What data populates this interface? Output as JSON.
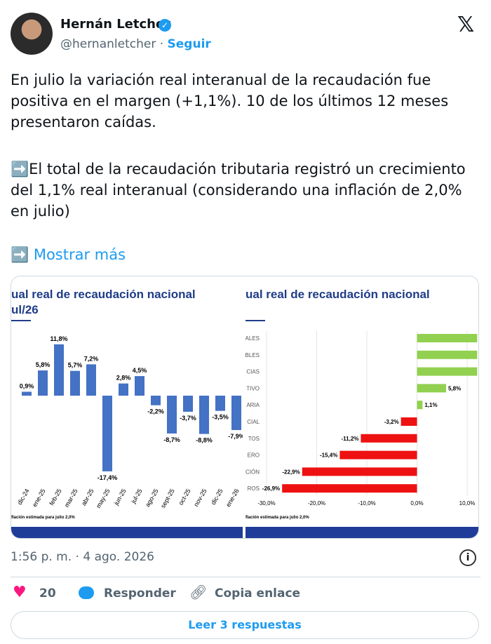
{
  "tweet": {
    "author": {
      "name": "Hernán Letcher",
      "handle": "@hernanletcher",
      "separator": "·",
      "follow": "Seguir"
    },
    "paragraphs": [
      "En julio la variación real interanual de la recaudación fue positiva en el margen (+1,1%). 10 de los últimos 12 meses presentaron caídas.",
      "➡️El total de la recaudación tributaria registró un crecimiento del 1,1% real interanual (considerando una inflación de 2,0% en julio)"
    ],
    "show_more": "➡️ Mostrar más",
    "media": [
      {
        "type": "bar",
        "title": "ual real de recaudación nacional",
        "subtitle": "ul/26",
        "footnote": "flación estimada para julio 2,0%",
        "color": "#4472c4",
        "categories": [
          "dic-24",
          "ene-25",
          "feb-25",
          "mar-25",
          "abr-25",
          "may-25",
          "jun-25",
          "jul-25",
          "ago-25",
          "sept-25",
          "oct-25",
          "nov-25",
          "dic-25",
          "ene-26"
        ],
        "values": [
          0.9,
          5.8,
          11.8,
          5.7,
          7.2,
          -17.4,
          2.8,
          4.5,
          -2.2,
          -8.7,
          -3.7,
          -8.8,
          -3.5,
          -7.9
        ],
        "value_labels": [
          "0,9%",
          "5,8%",
          "11,8%",
          "5,7%",
          "7,2%",
          "-17,4%",
          "2,8%",
          "4,5%",
          "-2,2%",
          "-8,7%",
          "-3,7%",
          "-8,8%",
          "-3,5%",
          "-7,9%"
        ]
      },
      {
        "type": "hbar",
        "title": "ual real de recaudación nacional",
        "footnote": "flación estimada para julio 2,0%",
        "categories": [
          "ALES",
          "BLES",
          "CIAS",
          "TIVO",
          "ARIA",
          "CIAL",
          "TOS",
          "ERO",
          "CIÓN",
          "ROS"
        ],
        "values": [
          12,
          12,
          12,
          5.8,
          1.1,
          -3.2,
          -11.2,
          -15.4,
          -22.9,
          -26.9
        ],
        "value_labels": [
          null,
          null,
          null,
          "5,8%",
          "1,1%",
          "-3,2%",
          "-11,2%",
          "-15,4%",
          "-22,9%",
          "-26,9%"
        ],
        "positive_color": "#92d050",
        "negative_color": "#ee1111",
        "xlim": [
          -30,
          10
        ],
        "xticks": [
          {
            "value": -30,
            "label": "-30,0%"
          },
          {
            "value": -20,
            "label": "-20,0%"
          },
          {
            "value": -10,
            "label": "-10,0%"
          },
          {
            "value": 0,
            "label": "0,0%"
          },
          {
            "value": 10,
            "label": "10,0%"
          }
        ]
      }
    ],
    "timestamp": "1:56 p. m. · 4 ago. 2026",
    "likes": "20",
    "reply": "Responder",
    "copy_link": "Copia enlace",
    "read_replies": "Leer 3 respuestas"
  }
}
